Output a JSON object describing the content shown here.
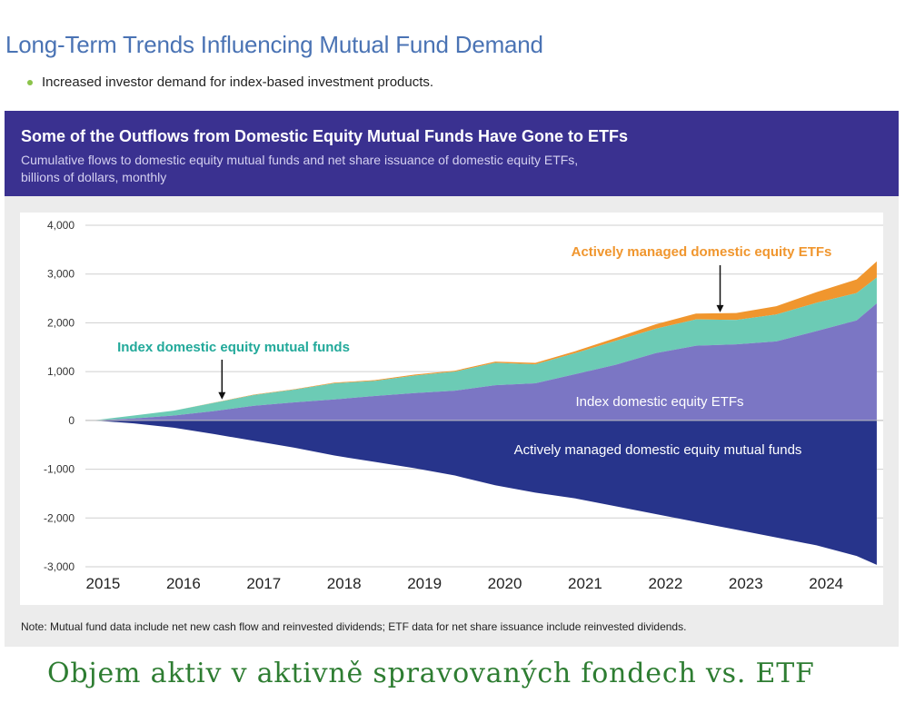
{
  "header": {
    "title": "Long-Term Trends Influencing Mutual Fund Demand",
    "bullet": "Increased investor demand for index-based investment products."
  },
  "chart_panel": {
    "title": "Some of the Outflows from Domestic Equity Mutual Funds Have Gone to ETFs",
    "subtitle_line1": "Cumulative flows to domestic equity mutual funds and net share issuance of domestic equity ETFs,",
    "subtitle_line2": "billions of dollars, monthly",
    "note": "Note: Mutual fund data include net new cash flow and reinvested dividends; ETF data for net share issuance include reinvested dividends."
  },
  "caption": "Objem aktiv v aktivně spravovaných fondech vs. ETF",
  "colors": {
    "active_mf": "#27348b",
    "index_etf": "#7b76c4",
    "index_mf": "#6ccbb5",
    "active_etf": "#f0962e",
    "header_bg": "#3a3190",
    "title_blue": "#4a73b4",
    "caption_green": "#2e7d32"
  },
  "chart_data": {
    "type": "area",
    "x": [
      2015,
      2015.5,
      2016,
      2016.5,
      2017,
      2017.5,
      2018,
      2018.5,
      2019,
      2019.5,
      2020,
      2020.5,
      2021,
      2021.5,
      2022,
      2022.5,
      2023,
      2023.5,
      2024,
      2024.5,
      2024.75
    ],
    "x_ticks": [
      "2015",
      "2016",
      "2017",
      "2018",
      "2019",
      "2020",
      "2021",
      "2022",
      "2023",
      "2024"
    ],
    "y_ticks": [
      "4,000",
      "3,000",
      "2,000",
      "1,000",
      "0",
      "-1,000",
      "-2,000",
      "-3,000"
    ],
    "ylim": [
      -3000,
      4000
    ],
    "xlim": [
      2014.9,
      2024.83
    ],
    "stacking": "positive series stacked above zero; actively managed mutual funds shown below zero",
    "series": [
      {
        "name": "Actively managed domestic equity mutual funds",
        "values": [
          0,
          -60,
          -150,
          -280,
          -420,
          -560,
          -720,
          -850,
          -980,
          -1130,
          -1330,
          -1480,
          -1600,
          -1760,
          -1920,
          -2080,
          -2240,
          -2400,
          -2560,
          -2780,
          -2960
        ]
      },
      {
        "name": "Index domestic equity ETFs",
        "values": [
          0,
          40,
          100,
          190,
          300,
          370,
          430,
          500,
          560,
          610,
          720,
          760,
          950,
          1140,
          1380,
          1530,
          1560,
          1620,
          1830,
          2050,
          2400
        ]
      },
      {
        "name": "Index domestic equity mutual funds",
        "values": [
          0,
          60,
          100,
          170,
          220,
          260,
          330,
          310,
          360,
          390,
          460,
          390,
          430,
          490,
          500,
          540,
          500,
          550,
          580,
          560,
          530
        ]
      },
      {
        "name": "Actively managed domestic equity ETFs",
        "values": [
          0,
          0,
          0,
          5,
          10,
          10,
          15,
          15,
          20,
          20,
          25,
          30,
          40,
          60,
          90,
          120,
          140,
          170,
          220,
          280,
          330
        ]
      }
    ],
    "annotations": [
      {
        "label": "Actively managed domestic equity ETFs",
        "arrow_to": "Actively managed domestic equity ETFs",
        "arrow_x": 2022.8
      },
      {
        "label": "Index domestic equity mutual funds",
        "arrow_to": "Index domestic equity mutual funds",
        "arrow_x": 2016.6
      },
      {
        "label": "Index domestic equity ETFs",
        "placement": "inside"
      },
      {
        "label": "Actively managed domestic equity mutual funds",
        "placement": "inside"
      }
    ]
  }
}
